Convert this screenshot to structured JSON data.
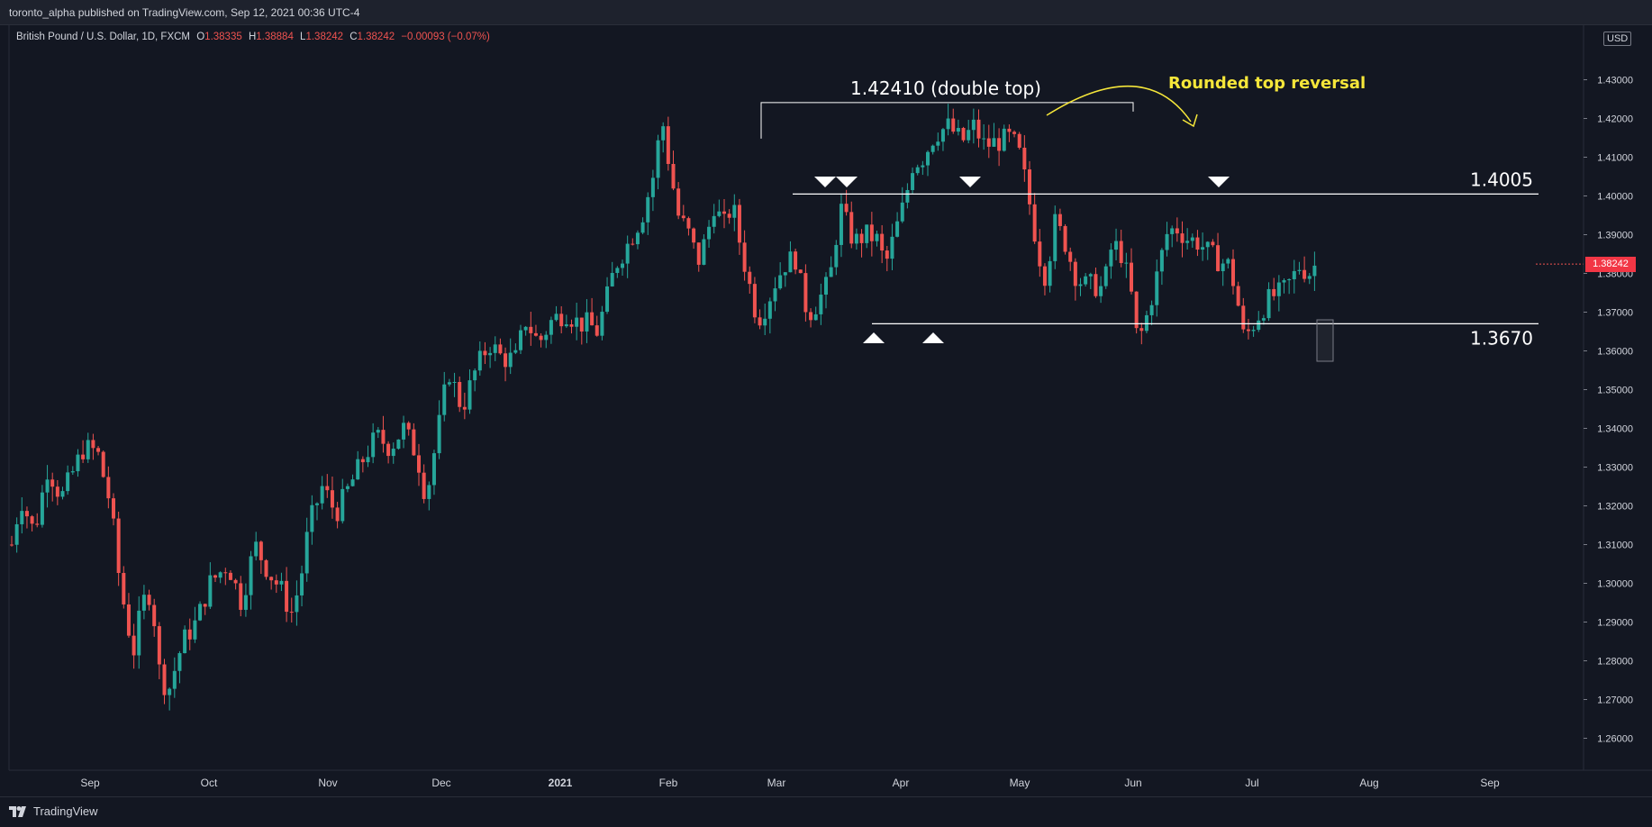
{
  "header": {
    "title": "toronto_alpha published on TradingView.com, Sep 12, 2021 00:36 UTC-4"
  },
  "legend": {
    "symbol": "British Pound / U.S. Dollar, 1D, FXCM",
    "open_label": "O",
    "open": "1.38335",
    "high_label": "H",
    "high": "1.38884",
    "low_label": "L",
    "low": "1.38242",
    "close_label": "C",
    "close": "1.38242",
    "change": "−0.00093 (−0.07%)"
  },
  "price_axis": {
    "currency": "USD",
    "last_price": "1.38242",
    "ticks": [
      "1.43000",
      "1.42000",
      "1.41000",
      "1.40000",
      "1.39000",
      "1.38000",
      "1.37000",
      "1.36000",
      "1.35000",
      "1.34000",
      "1.33000",
      "1.32000",
      "1.31000",
      "1.30000",
      "1.29000",
      "1.28000",
      "1.27000",
      "1.26000"
    ]
  },
  "annotations": {
    "double_top": "1.42410 (double top)",
    "rounded_top": "Rounded top reversal",
    "resistance": "1.4005",
    "support": "1.3670"
  },
  "footer": {
    "brand": "TradingView"
  },
  "colors": {
    "up": "#26a69a",
    "down": "#ef5350",
    "annotation_yellow": "#f5e63a",
    "background": "#131722",
    "lines": "#ffffff"
  },
  "chart_data": {
    "type": "candlestick",
    "symbol": "British Pound / U.S. Dollar",
    "timeframe": "1D",
    "ylim": [
      1.255,
      1.437
    ],
    "x_tick_labels": [
      "Sep",
      "Oct",
      "Nov",
      "Dec",
      "2021",
      "Feb",
      "Mar",
      "Apr",
      "May",
      "Jun",
      "Jul",
      "Aug",
      "Sep"
    ],
    "levels": {
      "double_top": 1.4241,
      "resistance": 1.4005,
      "support": 1.367
    },
    "path": [
      [
        0,
        1.31
      ],
      [
        10,
        1.322
      ],
      [
        25,
        1.313
      ],
      [
        40,
        1.33
      ],
      [
        55,
        1.322
      ],
      [
        80,
        1.335
      ],
      [
        95,
        1.334
      ],
      [
        110,
        1.32
      ],
      [
        120,
        1.3
      ],
      [
        135,
        1.282
      ],
      [
        145,
        1.295
      ],
      [
        155,
        1.298
      ],
      [
        165,
        1.275
      ],
      [
        175,
        1.273
      ],
      [
        190,
        1.285
      ],
      [
        205,
        1.29
      ],
      [
        220,
        1.3
      ],
      [
        240,
        1.305
      ],
      [
        255,
        1.295
      ],
      [
        270,
        1.31
      ],
      [
        285,
        1.303
      ],
      [
        300,
        1.298
      ],
      [
        310,
        1.292
      ],
      [
        320,
        1.3
      ],
      [
        330,
        1.315
      ],
      [
        345,
        1.325
      ],
      [
        360,
        1.318
      ],
      [
        375,
        1.325
      ],
      [
        390,
        1.332
      ],
      [
        405,
        1.338
      ],
      [
        420,
        1.335
      ],
      [
        435,
        1.34
      ],
      [
        450,
        1.333
      ],
      [
        460,
        1.322
      ],
      [
        470,
        1.335
      ],
      [
        485,
        1.355
      ],
      [
        500,
        1.345
      ],
      [
        515,
        1.355
      ],
      [
        530,
        1.362
      ],
      [
        545,
        1.358
      ],
      [
        560,
        1.358
      ],
      [
        570,
        1.368
      ],
      [
        585,
        1.362
      ],
      [
        600,
        1.368
      ],
      [
        615,
        1.37
      ],
      [
        630,
        1.367
      ],
      [
        640,
        1.367
      ],
      [
        650,
        1.365
      ],
      [
        660,
        1.373
      ],
      [
        670,
        1.382
      ],
      [
        685,
        1.388
      ],
      [
        700,
        1.395
      ],
      [
        712,
        1.405
      ],
      [
        722,
        1.42
      ],
      [
        730,
        1.408
      ],
      [
        740,
        1.395
      ],
      [
        752,
        1.39
      ],
      [
        762,
        1.383
      ],
      [
        772,
        1.39
      ],
      [
        780,
        1.398
      ],
      [
        790,
        1.392
      ],
      [
        800,
        1.398
      ],
      [
        810,
        1.386
      ],
      [
        820,
        1.376
      ],
      [
        828,
        1.368
      ],
      [
        838,
        1.372
      ],
      [
        848,
        1.378
      ],
      [
        860,
        1.383
      ],
      [
        870,
        1.384
      ],
      [
        880,
        1.372
      ],
      [
        888,
        1.37
      ],
      [
        898,
        1.374
      ],
      [
        908,
        1.378
      ],
      [
        920,
        1.397
      ],
      [
        935,
        1.388
      ],
      [
        948,
        1.39
      ],
      [
        960,
        1.389
      ],
      [
        970,
        1.382
      ],
      [
        980,
        1.39
      ],
      [
        992,
        1.399
      ],
      [
        1000,
        1.408
      ],
      [
        1012,
        1.41
      ],
      [
        1025,
        1.416
      ],
      [
        1040,
        1.418
      ],
      [
        1055,
        1.414
      ],
      [
        1068,
        1.418
      ],
      [
        1080,
        1.413
      ],
      [
        1095,
        1.414
      ],
      [
        1110,
        1.415
      ],
      [
        1120,
        1.41
      ],
      [
        1130,
        1.398
      ],
      [
        1140,
        1.385
      ],
      [
        1148,
        1.379
      ],
      [
        1158,
        1.393
      ],
      [
        1168,
        1.389
      ],
      [
        1180,
        1.38
      ],
      [
        1190,
        1.377
      ],
      [
        1200,
        1.377
      ],
      [
        1212,
        1.376
      ],
      [
        1222,
        1.388
      ],
      [
        1232,
        1.385
      ],
      [
        1242,
        1.376
      ],
      [
        1250,
        1.362
      ],
      [
        1258,
        1.367
      ],
      [
        1270,
        1.378
      ],
      [
        1282,
        1.39
      ],
      [
        1292,
        1.392
      ],
      [
        1305,
        1.389
      ],
      [
        1318,
        1.388
      ],
      [
        1330,
        1.385
      ],
      [
        1342,
        1.383
      ],
      [
        1352,
        1.382
      ],
      [
        1360,
        1.374
      ],
      [
        1368,
        1.363
      ],
      [
        1376,
        1.366
      ],
      [
        1386,
        1.37
      ],
      [
        1398,
        1.374
      ],
      [
        1410,
        1.375
      ],
      [
        1420,
        1.378
      ],
      [
        1430,
        1.382
      ],
      [
        1440,
        1.38
      ],
      [
        1450,
        1.383
      ]
    ]
  }
}
